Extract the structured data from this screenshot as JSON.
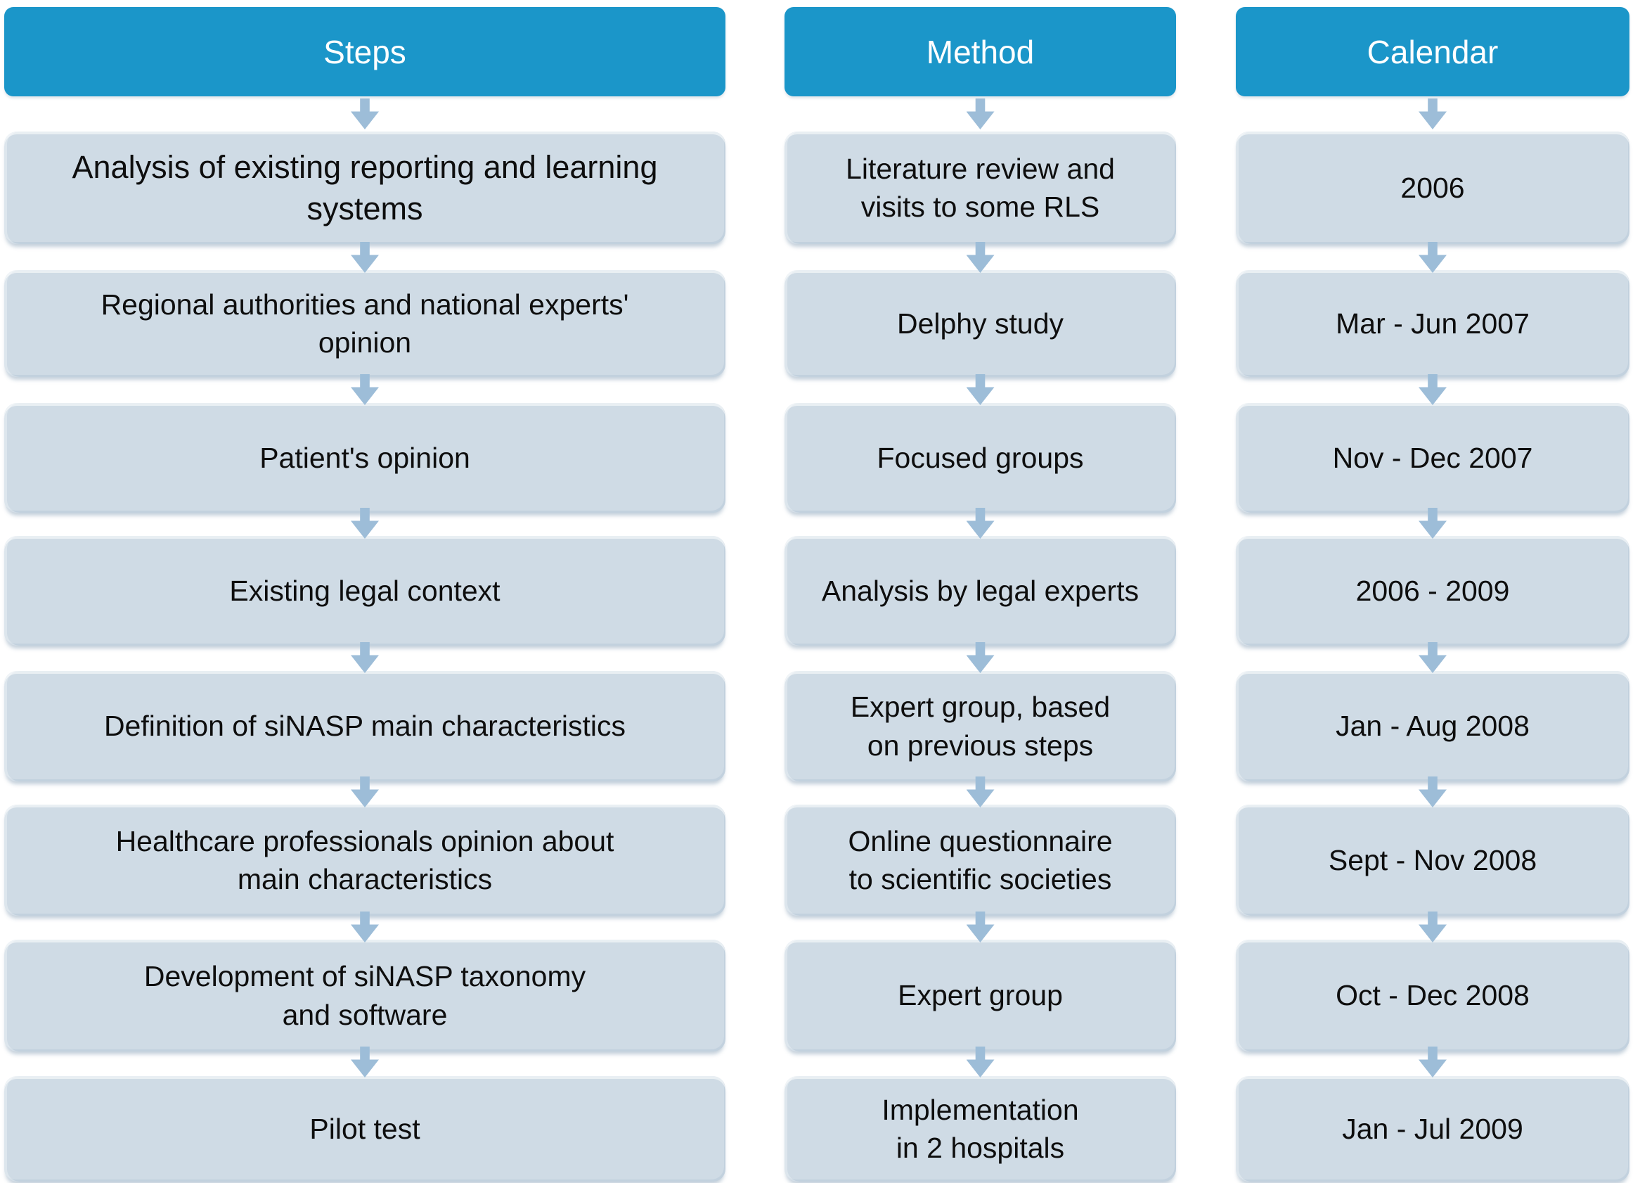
{
  "diagram": {
    "columns": [
      {
        "id": "steps",
        "header": "Steps"
      },
      {
        "id": "method",
        "header": "Method"
      },
      {
        "id": "calendar",
        "header": "Calendar"
      }
    ],
    "rows": [
      {
        "step": "Analysis of existing reporting and learning\nsystems",
        "method": "Literature review and\nvisits to some RLS",
        "calendar": "2006"
      },
      {
        "step": "Regional authorities and national experts'\nopinion",
        "method": "Delphy study",
        "calendar": "Mar - Jun 2007"
      },
      {
        "step": "Patient's opinion",
        "method": "Focused groups",
        "calendar": "Nov - Dec 2007"
      },
      {
        "step": "Existing legal context",
        "method": "Analysis by legal experts",
        "calendar": "2006 - 2009"
      },
      {
        "step": "Definition of siNASP main characteristics",
        "method": "Expert group, based\non previous steps",
        "calendar": "Jan - Aug 2008"
      },
      {
        "step": "Healthcare professionals opinion about\nmain characteristics",
        "method": "Online questionnaire\nto scientific societies",
        "calendar": "Sept - Nov 2008"
      },
      {
        "step": "Development of siNASP taxonomy\nand software",
        "method": "Expert group",
        "calendar": "Oct - Dec 2008"
      },
      {
        "step": "Pilot test",
        "method": "Implementation\nin 2 hospitals",
        "calendar": "Jan - Jul 2009"
      }
    ],
    "colors": {
      "header_bg": "#1b96c9",
      "header_text": "#ffffff",
      "box_bg": "#cfdbe5",
      "box_text": "#0e0e0e",
      "arrow": "#9dbdd8"
    }
  }
}
